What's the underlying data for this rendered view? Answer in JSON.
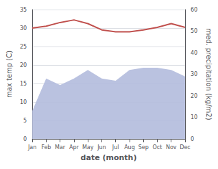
{
  "chart_data": {
    "type": "line",
    "categories": [
      "Jan",
      "Feb",
      "Mar",
      "Apr",
      "May",
      "Jun",
      "Jul",
      "Aug",
      "Sep",
      "Oct",
      "Nov",
      "Dec"
    ],
    "series": [
      {
        "type": "area",
        "axis": "y2",
        "color": "#b3bbdd",
        "values": [
          13,
          28,
          25,
          28,
          32,
          28,
          27,
          32,
          33,
          33,
          32,
          29
        ]
      },
      {
        "type": "line",
        "color": "#c0504d",
        "values": [
          30.0,
          30.5,
          31.5,
          32.2,
          31.2,
          29.5,
          29.0,
          29.0,
          29.5,
          30.2,
          31.2,
          30.2
        ]
      }
    ],
    "xlabel": "date (month)",
    "ylabel": "max temp (C)",
    "y2label": "med. precipitation (kg/m2)",
    "ylim": [
      0,
      35
    ],
    "yticks": [
      0,
      5,
      10,
      15,
      20,
      25,
      30,
      35
    ],
    "y2lim": [
      0,
      60
    ],
    "y2ticks": [
      0,
      10,
      20,
      30,
      40,
      50,
      60
    ],
    "grid": true
  }
}
